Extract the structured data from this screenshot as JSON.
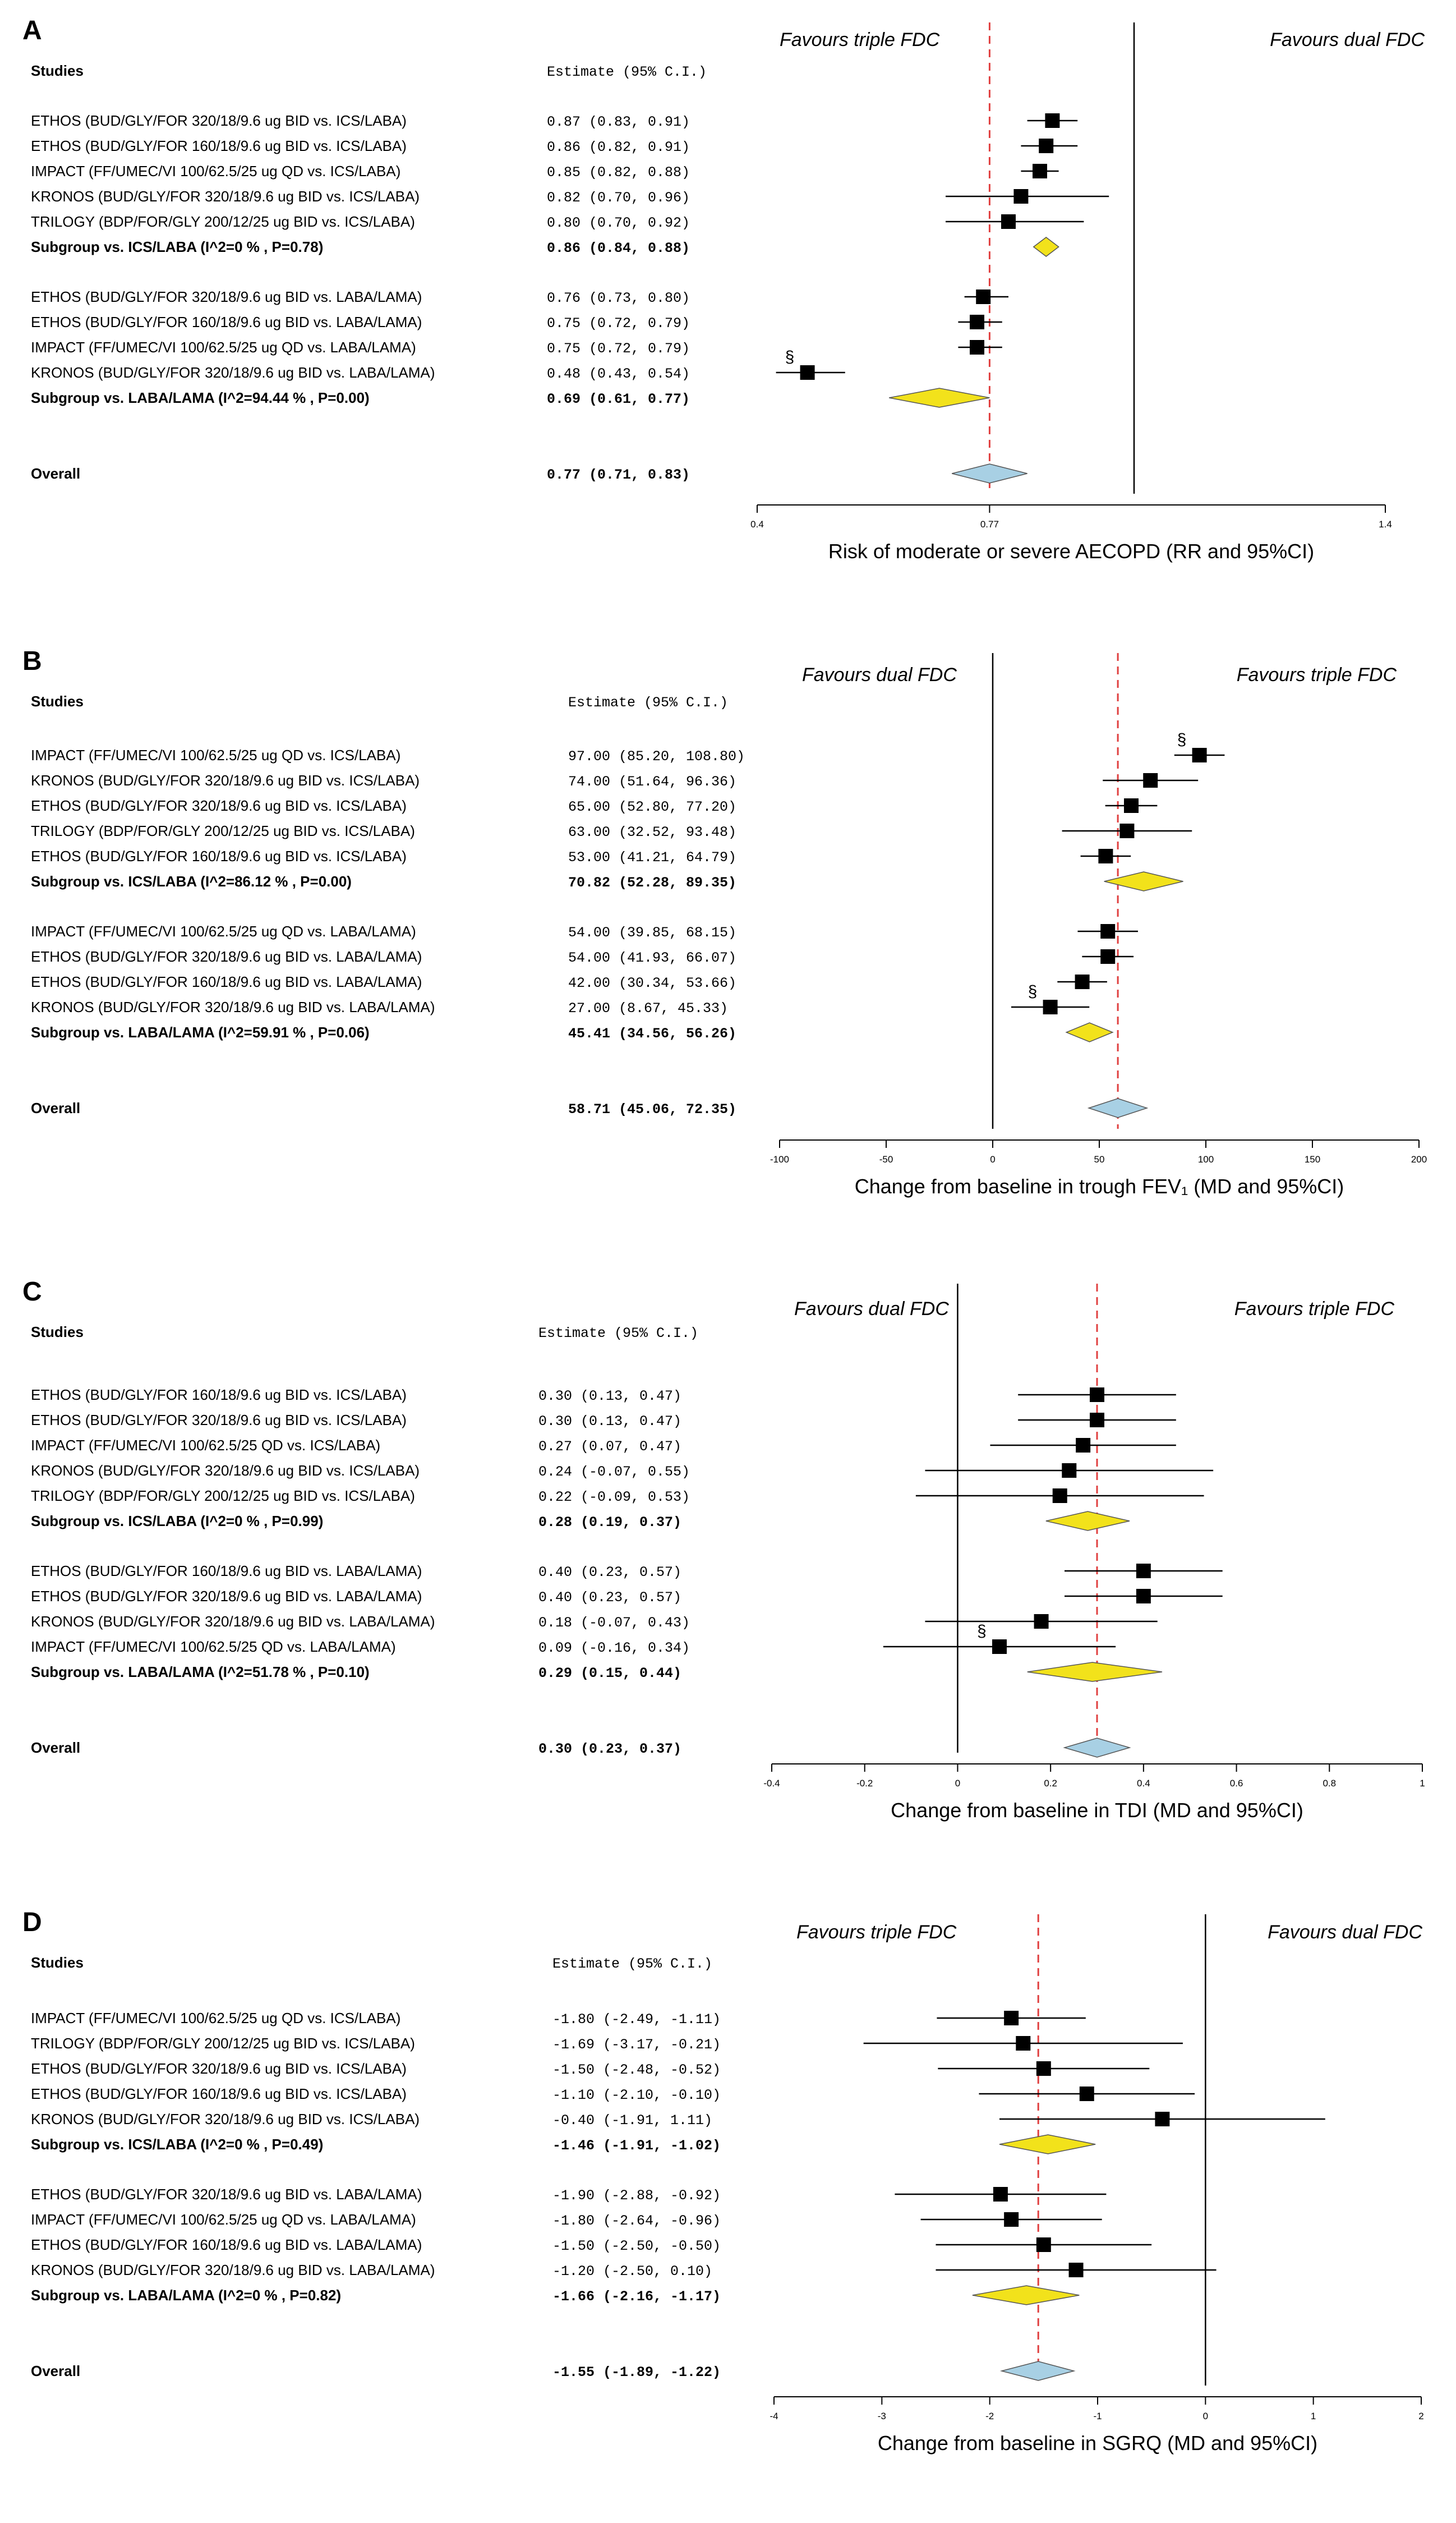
{
  "chart_data": [
    {
      "type": "forest",
      "panel_label": "A",
      "studies_header": "Studies",
      "estimate_header": "Estimate (95% C.I.)",
      "favour_left": "Favours triple FDC",
      "favour_right": "Favours dual FDC",
      "xlabel": "Risk of moderate or severe AECOPD (RR and 95%CI)",
      "xlim": [
        0.4,
        1.4
      ],
      "ticks": [
        "0.4",
        "0.77",
        "1.4"
      ],
      "null_value": 1.0,
      "pooled_value": 0.77,
      "groups": [
        {
          "studies": [
            {
              "name": "ETHOS (BUD/GLY/FOR 320/18/9.6 ug BID vs. ICS/LABA)",
              "est": "0.87",
              "lo": "0.83",
              "hi": "0.91",
              "point": 0.87,
              "low": 0.83,
              "high": 0.91,
              "note": ""
            },
            {
              "name": "ETHOS (BUD/GLY/FOR 160/18/9.6 ug BID vs. ICS/LABA)",
              "est": "0.86",
              "lo": "0.82",
              "hi": "0.91",
              "point": 0.86,
              "low": 0.82,
              "high": 0.91,
              "note": ""
            },
            {
              "name": "IMPACT (FF/UMEC/VI 100/62.5/25 ug QD vs. ICS/LABA)",
              "est": "0.85",
              "lo": "0.82",
              "hi": "0.88",
              "point": 0.85,
              "low": 0.82,
              "high": 0.88,
              "note": ""
            },
            {
              "name": "KRONOS (BUD/GLY/FOR 320/18/9.6 ug BID vs. ICS/LABA)",
              "est": "0.82",
              "lo": "0.70",
              "hi": "0.96",
              "point": 0.82,
              "low": 0.7,
              "high": 0.96,
              "note": ""
            },
            {
              "name": "TRILOGY (BDP/FOR/GLY 200/12/25 ug BID vs. ICS/LABA)",
              "est": "0.80",
              "lo": "0.70",
              "hi": "0.92",
              "point": 0.8,
              "low": 0.7,
              "high": 0.92,
              "note": ""
            }
          ],
          "subgroup": {
            "label": "Subgroup vs. ICS/LABA (I^2=0 % , P=0.78)",
            "est": "0.86",
            "lo": "0.84",
            "hi": "0.88",
            "point": 0.86,
            "low": 0.84,
            "high": 0.88
          }
        },
        {
          "studies": [
            {
              "name": "ETHOS (BUD/GLY/FOR 320/18/9.6 ug BID vs. LABA/LAMA)",
              "est": "0.76",
              "lo": "0.73",
              "hi": "0.80",
              "point": 0.76,
              "low": 0.73,
              "high": 0.8,
              "note": ""
            },
            {
              "name": "ETHOS (BUD/GLY/FOR 160/18/9.6 ug BID vs. LABA/LAMA)",
              "est": "0.75",
              "lo": "0.72",
              "hi": "0.79",
              "point": 0.75,
              "low": 0.72,
              "high": 0.79,
              "note": ""
            },
            {
              "name": "IMPACT (FF/UMEC/VI 100/62.5/25 ug QD vs. LABA/LAMA)",
              "est": "0.75",
              "lo": "0.72",
              "hi": "0.79",
              "point": 0.75,
              "low": 0.72,
              "high": 0.79,
              "note": ""
            },
            {
              "name": "KRONOS (BUD/GLY/FOR 320/18/9.6 ug BID vs. LABA/LAMA)",
              "est": "0.48",
              "lo": "0.43",
              "hi": "0.54",
              "point": 0.48,
              "low": 0.43,
              "high": 0.54,
              "note": "§"
            }
          ],
          "subgroup": {
            "label": "Subgroup vs. LABA/LAMA (I^2=94.44 % , P=0.00)",
            "est": "0.69",
            "lo": "0.61",
            "hi": "0.77",
            "point": 0.69,
            "low": 0.61,
            "high": 0.77
          }
        }
      ],
      "overall": {
        "label": "Overall",
        "est": "0.77",
        "lo": "0.71",
        "hi": "0.83",
        "point": 0.77,
        "low": 0.71,
        "high": 0.83
      }
    },
    {
      "type": "forest",
      "panel_label": "B",
      "studies_header": "Studies",
      "estimate_header": "Estimate (95% C.I.)",
      "favour_left": "Favours dual FDC",
      "favour_right": "Favours triple FDC",
      "xlabel": "Change from baseline in trough FEV₁ (MD and 95%CI)",
      "xlim": [
        -100,
        200
      ],
      "ticks": [
        "-100",
        "-50",
        "0",
        "50",
        "100",
        "150",
        "200"
      ],
      "null_value": 0,
      "pooled_value": 58.71,
      "groups": [
        {
          "studies": [
            {
              "name": "IMPACT (FF/UMEC/VI 100/62.5/25 ug QD vs. ICS/LABA)",
              "est": "97.00",
              "lo": "85.20",
              "hi": "108.80",
              "point": 97.0,
              "low": 85.2,
              "high": 108.8,
              "note": "§"
            },
            {
              "name": "KRONOS (BUD/GLY/FOR 320/18/9.6 ug BID vs. ICS/LABA)",
              "est": "74.00",
              "lo": "51.64",
              "hi": "96.36",
              "point": 74.0,
              "low": 51.64,
              "high": 96.36,
              "note": ""
            },
            {
              "name": "ETHOS (BUD/GLY/FOR 320/18/9.6 ug BID vs. ICS/LABA)",
              "est": "65.00",
              "lo": "52.80",
              "hi": "77.20",
              "point": 65.0,
              "low": 52.8,
              "high": 77.2,
              "note": ""
            },
            {
              "name": "TRILOGY (BDP/FOR/GLY 200/12/25 ug BID vs. ICS/LABA)",
              "est": "63.00",
              "lo": "32.52",
              "hi": "93.48",
              "point": 63.0,
              "low": 32.52,
              "high": 93.48,
              "note": ""
            },
            {
              "name": "ETHOS (BUD/GLY/FOR 160/18/9.6 ug BID vs. ICS/LABA)",
              "est": "53.00",
              "lo": "41.21",
              "hi": "64.79",
              "point": 53.0,
              "low": 41.21,
              "high": 64.79,
              "note": ""
            }
          ],
          "subgroup": {
            "label": "Subgroup vs. ICS/LABA (I^2=86.12 % , P=0.00)",
            "est": "70.82",
            "lo": "52.28",
            "hi": "89.35",
            "point": 70.82,
            "low": 52.28,
            "high": 89.35
          }
        },
        {
          "studies": [
            {
              "name": "IMPACT (FF/UMEC/VI 100/62.5/25 ug QD vs. LABA/LAMA)",
              "est": "54.00",
              "lo": "39.85",
              "hi": "68.15",
              "point": 54.0,
              "low": 39.85,
              "high": 68.15,
              "note": ""
            },
            {
              "name": "ETHOS (BUD/GLY/FOR 320/18/9.6 ug BID vs. LABA/LAMA)",
              "est": "54.00",
              "lo": "41.93",
              "hi": "66.07",
              "point": 54.0,
              "low": 41.93,
              "high": 66.07,
              "note": ""
            },
            {
              "name": "ETHOS (BUD/GLY/FOR 160/18/9.6 ug BID vs. LABA/LAMA)",
              "est": "42.00",
              "lo": "30.34",
              "hi": "53.66",
              "point": 42.0,
              "low": 30.34,
              "high": 53.66,
              "note": ""
            },
            {
              "name": "KRONOS (BUD/GLY/FOR 320/18/9.6 ug BID vs. LABA/LAMA)",
              "est": "27.00",
              "lo": "8.67",
              "hi": "45.33",
              "point": 27.0,
              "low": 8.67,
              "high": 45.33,
              "note": "§"
            }
          ],
          "subgroup": {
            "label": "Subgroup vs. LABA/LAMA (I^2=59.91 % , P=0.06)",
            "est": "45.41",
            "lo": "34.56",
            "hi": "56.26",
            "point": 45.41,
            "low": 34.56,
            "high": 56.26
          }
        }
      ],
      "overall": {
        "label": "Overall",
        "est": "58.71",
        "lo": "45.06",
        "hi": "72.35",
        "point": 58.71,
        "low": 45.06,
        "high": 72.35
      }
    },
    {
      "type": "forest",
      "panel_label": "C",
      "studies_header": "Studies",
      "estimate_header": "Estimate (95% C.I.)",
      "favour_left": "Favours dual FDC",
      "favour_right": "Favours triple FDC",
      "xlabel": "Change from baseline in TDI (MD and 95%CI)",
      "xlim": [
        -0.4,
        1
      ],
      "ticks": [
        "-0.4",
        "-0.2",
        "0",
        "0.2",
        "0.4",
        "0.6",
        "0.8",
        "1"
      ],
      "null_value": 0,
      "pooled_value": 0.3,
      "groups": [
        {
          "studies": [
            {
              "name": "ETHOS (BUD/GLY/FOR 160/18/9.6 ug BID vs. ICS/LABA)",
              "est": "0.30",
              "lo": "0.13",
              "hi": "0.47",
              "point": 0.3,
              "low": 0.13,
              "high": 0.47,
              "note": ""
            },
            {
              "name": "ETHOS (BUD/GLY/FOR 320/18/9.6 ug BID vs. ICS/LABA)",
              "est": "0.30",
              "lo": "0.13",
              "hi": "0.47",
              "point": 0.3,
              "low": 0.13,
              "high": 0.47,
              "note": ""
            },
            {
              "name": "IMPACT (FF/UMEC/VI 100/62.5/25 QD vs. ICS/LABA)",
              "est": "0.27",
              "lo": "0.07",
              "hi": "0.47",
              "point": 0.27,
              "low": 0.07,
              "high": 0.47,
              "note": ""
            },
            {
              "name": "KRONOS (BUD/GLY/FOR 320/18/9.6 ug BID vs. ICS/LABA)",
              "est": "0.24",
              "lo": "-0.07",
              "hi": "0.55",
              "point": 0.24,
              "low": -0.07,
              "high": 0.55,
              "note": ""
            },
            {
              "name": "TRILOGY (BDP/FOR/GLY 200/12/25 ug BID vs. ICS/LABA)",
              "est": "0.22",
              "lo": "-0.09",
              "hi": "0.53",
              "point": 0.22,
              "low": -0.09,
              "high": 0.53,
              "note": ""
            }
          ],
          "subgroup": {
            "label": "Subgroup vs. ICS/LABA (I^2=0 % , P=0.99)",
            "est": "0.28",
            "lo": "0.19",
            "hi": "0.37",
            "point": 0.28,
            "low": 0.19,
            "high": 0.37
          }
        },
        {
          "studies": [
            {
              "name": "ETHOS (BUD/GLY/FOR 160/18/9.6 ug BID vs. LABA/LAMA)",
              "est": "0.40",
              "lo": "0.23",
              "hi": "0.57",
              "point": 0.4,
              "low": 0.23,
              "high": 0.57,
              "note": ""
            },
            {
              "name": "ETHOS (BUD/GLY/FOR 320/18/9.6 ug BID vs. LABA/LAMA)",
              "est": "0.40",
              "lo": "0.23",
              "hi": "0.57",
              "point": 0.4,
              "low": 0.23,
              "high": 0.57,
              "note": ""
            },
            {
              "name": "KRONOS (BUD/GLY/FOR 320/18/9.6 ug BID vs. LABA/LAMA)",
              "est": "0.18",
              "lo": "-0.07",
              "hi": "0.43",
              "point": 0.18,
              "low": -0.07,
              "high": 0.43,
              "note": ""
            },
            {
              "name": "IMPACT (FF/UMEC/VI 100/62.5/25 QD vs. LABA/LAMA)",
              "est": "0.09",
              "lo": "-0.16",
              "hi": "0.34",
              "point": 0.09,
              "low": -0.16,
              "high": 0.34,
              "note": "§"
            }
          ],
          "subgroup": {
            "label": "Subgroup vs. LABA/LAMA (I^2=51.78 % , P=0.10)",
            "est": "0.29",
            "lo": "0.15",
            "hi": "0.44",
            "point": 0.29,
            "low": 0.15,
            "high": 0.44
          }
        }
      ],
      "overall": {
        "label": "Overall",
        "est": "0.30",
        "lo": "0.23",
        "hi": "0.37",
        "point": 0.3,
        "low": 0.23,
        "high": 0.37
      }
    },
    {
      "type": "forest",
      "panel_label": "D",
      "studies_header": "Studies",
      "estimate_header": "Estimate (95% C.I.)",
      "favour_left": "Favours triple FDC",
      "favour_right": "Favours dual FDC",
      "xlabel": "Change from baseline in SGRQ (MD and 95%CI)",
      "xlim": [
        -4,
        2
      ],
      "ticks": [
        "-4",
        "-3",
        "-2",
        "-1",
        "0",
        "1",
        "2"
      ],
      "null_value": 0,
      "pooled_value": -1.55,
      "groups": [
        {
          "studies": [
            {
              "name": "IMPACT (FF/UMEC/VI 100/62.5/25 ug QD vs. ICS/LABA)",
              "est": "-1.80",
              "lo": "-2.49",
              "hi": "-1.11",
              "point": -1.8,
              "low": -2.49,
              "high": -1.11,
              "note": ""
            },
            {
              "name": "TRILOGY (BDP/FOR/GLY 200/12/25 ug BID vs. ICS/LABA)",
              "est": "-1.69",
              "lo": "-3.17",
              "hi": "-0.21",
              "point": -1.69,
              "low": -3.17,
              "high": -0.21,
              "note": ""
            },
            {
              "name": "ETHOS (BUD/GLY/FOR 320/18/9.6 ug BID vs. ICS/LABA)",
              "est": "-1.50",
              "lo": "-2.48",
              "hi": "-0.52",
              "point": -1.5,
              "low": -2.48,
              "high": -0.52,
              "note": ""
            },
            {
              "name": "ETHOS (BUD/GLY/FOR 160/18/9.6 ug BID vs. ICS/LABA)",
              "est": "-1.10",
              "lo": "-2.10",
              "hi": "-0.10",
              "point": -1.1,
              "low": -2.1,
              "high": -0.1,
              "note": ""
            },
            {
              "name": "KRONOS (BUD/GLY/FOR 320/18/9.6 ug BID vs. ICS/LABA)",
              "est": "-0.40",
              "lo": "-1.91",
              "hi": "1.11",
              "point": -0.4,
              "low": -1.91,
              "high": 1.11,
              "note": ""
            }
          ],
          "subgroup": {
            "label": "Subgroup vs. ICS/LABA (I^2=0 % , P=0.49)",
            "est": "-1.46",
            "lo": "-1.91",
            "hi": "-1.02",
            "point": -1.46,
            "low": -1.91,
            "high": -1.02
          }
        },
        {
          "studies": [
            {
              "name": "ETHOS (BUD/GLY/FOR 320/18/9.6 ug BID vs. LABA/LAMA)",
              "est": "-1.90",
              "lo": "-2.88",
              "hi": "-0.92",
              "point": -1.9,
              "low": -2.88,
              "high": -0.92,
              "note": ""
            },
            {
              "name": "IMPACT (FF/UMEC/VI 100/62.5/25 ug QD vs. LABA/LAMA)",
              "est": "-1.80",
              "lo": "-2.64",
              "hi": "-0.96",
              "point": -1.8,
              "low": -2.64,
              "high": -0.96,
              "note": ""
            },
            {
              "name": "ETHOS (BUD/GLY/FOR 160/18/9.6 ug BID vs. LABA/LAMA)",
              "est": "-1.50",
              "lo": "-2.50",
              "hi": "-0.50",
              "point": -1.5,
              "low": -2.5,
              "high": -0.5,
              "note": ""
            },
            {
              "name": "KRONOS (BUD/GLY/FOR 320/18/9.6 ug BID vs. LABA/LAMA)",
              "est": "-1.20",
              "lo": "-2.50",
              "hi": "0.10",
              "point": -1.2,
              "low": -2.5,
              "high": 0.1,
              "note": ""
            }
          ],
          "subgroup": {
            "label": "Subgroup vs. LABA/LAMA (I^2=0 % , P=0.82)",
            "est": "-1.66",
            "lo": "-2.16",
            "hi": "-1.17",
            "point": -1.66,
            "low": -2.16,
            "high": -1.17
          }
        }
      ],
      "overall": {
        "label": "Overall",
        "est": "-1.55",
        "lo": "-1.89",
        "hi": "-1.22",
        "point": -1.55,
        "low": -1.89,
        "high": -1.22
      }
    }
  ],
  "colors": {
    "subgroup_diamond": "#f2e21b",
    "overall_diamond": "#a8d0e4",
    "pooled_line": "#e04040",
    "ink": "#000000"
  }
}
